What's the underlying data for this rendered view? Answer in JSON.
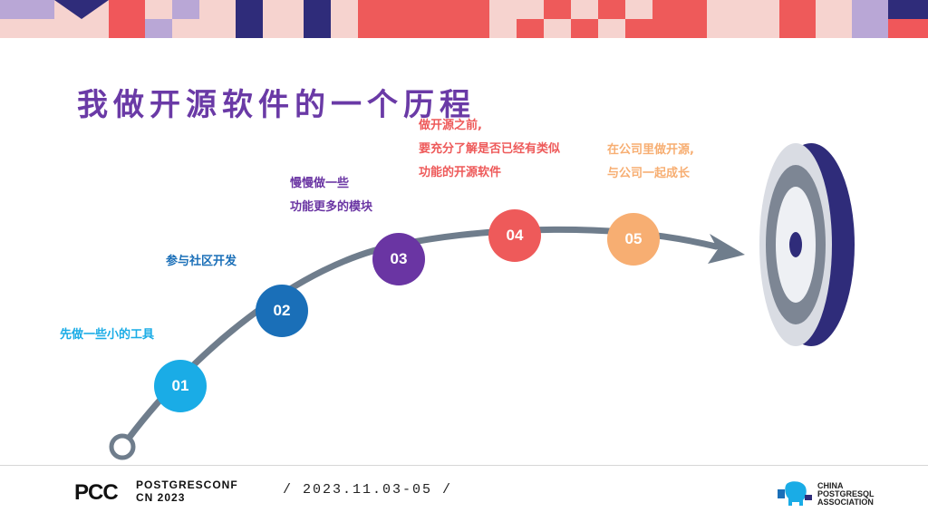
{
  "slide": {
    "title": "我做开源软件的一个历程"
  },
  "steps": [
    {
      "number": "01",
      "color": "#1aace6",
      "label_lines": [
        "先做一些小的工具"
      ],
      "label_color": "#1aace6"
    },
    {
      "number": "02",
      "color": "#1a6fb8",
      "label_lines": [
        "参与社区开发"
      ],
      "label_color": "#1a6fb8"
    },
    {
      "number": "03",
      "color": "#6a35a3",
      "label_lines": [
        "慢慢做一些",
        "功能更多的模块"
      ],
      "label_color": "#6a35a3"
    },
    {
      "number": "04",
      "color": "#ee5a5a",
      "label_lines": [
        "做开源之前,",
        "要充分了解是否已经有类似",
        "功能的开源软件"
      ],
      "label_color": "#ee5a5a"
    },
    {
      "number": "05",
      "color": "#f7ae72",
      "label_lines": [
        "在公司里做开源,",
        "与公司一起成长"
      ],
      "label_color": "#f7ae72"
    }
  ],
  "footer": {
    "logo_mark": "PCC",
    "logo_line1": "POSTGRESCONF",
    "logo_line2": "CN 2023",
    "date": "/  2023.11.03-05  /",
    "assoc_line1": "CHINA",
    "assoc_line2": "POSTGRESQL",
    "assoc_line3": "ASSOCIATION"
  },
  "colors": {
    "title": "#6a3aa6",
    "curve": "#6f7d8c",
    "target_outer": "#2f2c7a",
    "target_ring": "#7d8694",
    "target_light": "#d9dce3"
  }
}
